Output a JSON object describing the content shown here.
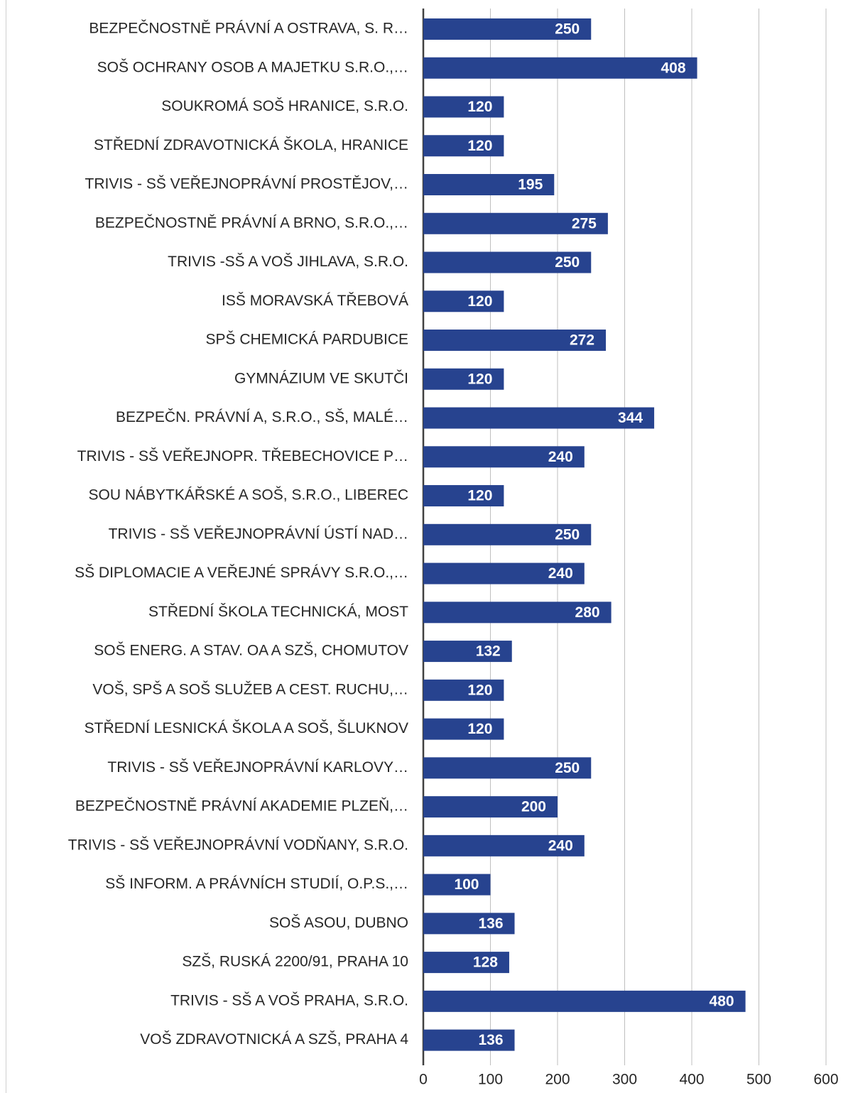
{
  "chart_data": {
    "type": "bar",
    "orientation": "horizontal",
    "categories": [
      "BEZPEČNOSTNĚ PRÁVNÍ A OSTRAVA, S. R…",
      "SOŠ OCHRANY OSOB A MAJETKU S.R.O.,…",
      "SOUKROMÁ SOŠ HRANICE, S.R.O.",
      "STŘEDNÍ ZDRAVOTNICKÁ ŠKOLA, HRANICE",
      "TRIVIS - SŠ VEŘEJNOPRÁVNÍ PROSTĚJOV,…",
      "BEZPEČNOSTNĚ PRÁVNÍ A BRNO, S.R.O.,…",
      "TRIVIS -SŠ  A VOŠ JIHLAVA, S.R.O.",
      "ISŠ MORAVSKÁ TŘEBOVÁ",
      "SPŠ CHEMICKÁ PARDUBICE",
      "GYMNÁZIUM VE SKUTČI",
      "BEZPEČN. PRÁVNÍ A, S.R.O., SŠ, MALÉ…",
      "TRIVIS - SŠ VEŘEJNOPR. TŘEBECHOVICE P…",
      "SOU NÁBYTKÁŘSKÉ A SOŠ, S.R.O., LIBEREC",
      "TRIVIS - SŠ VEŘEJNOPRÁVNÍ ÚSTÍ NAD…",
      "SŠ DIPLOMACIE A VEŘEJNÉ SPRÁVY S.R.O.,…",
      "STŘEDNÍ ŠKOLA TECHNICKÁ, MOST",
      "SOŠ ENERG. A STAV. OA A SZŠ, CHOMUTOV",
      "VOŠ, SPŠ A SOŠ SLUŽEB A CEST. RUCHU,…",
      "STŘEDNÍ LESNICKÁ ŠKOLA A SOŠ, ŠLUKNOV",
      "TRIVIS - SŠ VEŘEJNOPRÁVNÍ KARLOVY…",
      "BEZPEČNOSTNĚ PRÁVNÍ AKADEMIE PLZEŇ,…",
      "TRIVIS - SŠ VEŘEJNOPRÁVNÍ VODŇANY, S.R.O.",
      "SŠ INFORM. A PRÁVNÍCH STUDIÍ, O.P.S.,…",
      "SOŠ ASOU, DUBNO",
      "SZŠ, RUSKÁ 2200/91, PRAHA 10",
      "TRIVIS - SŠ  A VOŠ  PRAHA, S.R.O.",
      "VOŠ ZDRAVOTNICKÁ A SZŠ, PRAHA 4"
    ],
    "values": [
      250,
      408,
      120,
      120,
      195,
      275,
      250,
      120,
      272,
      120,
      344,
      240,
      120,
      250,
      240,
      280,
      132,
      120,
      120,
      250,
      200,
      240,
      100,
      136,
      128,
      480,
      136
    ],
    "color": "#27438f",
    "xlim": [
      0,
      600
    ],
    "xticks": [
      0,
      100,
      200,
      300,
      400,
      500,
      600
    ],
    "grid": true
  }
}
